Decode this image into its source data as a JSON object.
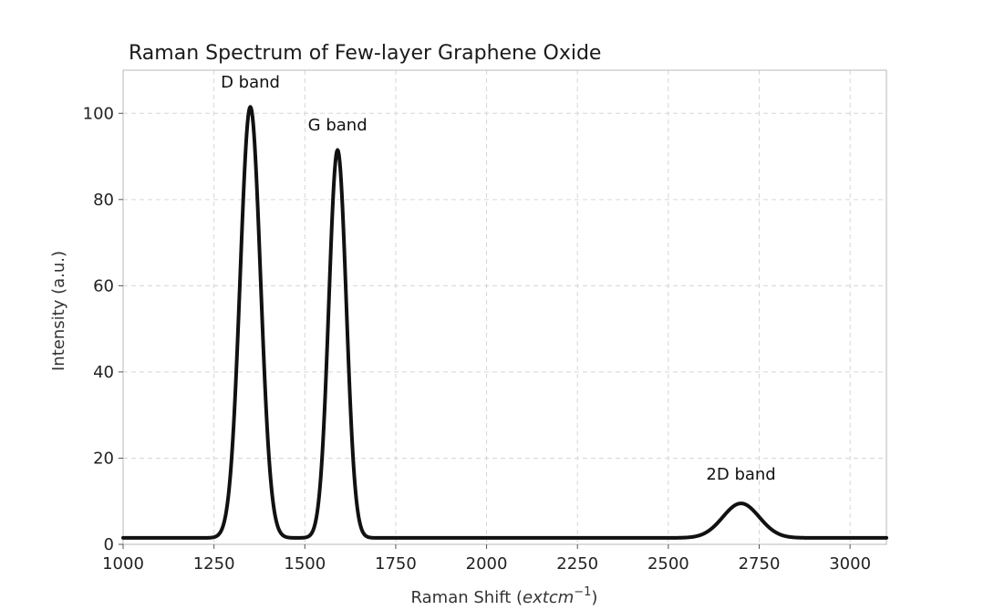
{
  "chart_data": {
    "type": "line",
    "title": "Raman Spectrum of Few-layer Graphene Oxide",
    "xlabel": "Raman Shift (extcm^-1)",
    "xlabel_parts": {
      "prefix": "Raman Shift (",
      "math": "extcm",
      "exponent": "−1",
      "suffix": ")"
    },
    "ylabel": "Intensity (a.u.)",
    "xlim": [
      1000,
      3100
    ],
    "ylim": [
      0,
      110
    ],
    "x_ticks": [
      1000,
      1250,
      1500,
      1750,
      2000,
      2250,
      2500,
      2750,
      3000
    ],
    "y_ticks": [
      0,
      20,
      40,
      60,
      80,
      100
    ],
    "grid": true,
    "legend": "none",
    "baseline": 1.5,
    "peaks": [
      {
        "label": "D band",
        "center": 1350,
        "height": 100,
        "width": 28
      },
      {
        "label": "G band",
        "center": 1590,
        "height": 90,
        "width": 24
      },
      {
        "label": "2D band",
        "center": 2700,
        "height": 8,
        "width": 50
      }
    ],
    "x": [
      1000,
      1100,
      1200,
      1260,
      1290,
      1310,
      1330,
      1350,
      1370,
      1390,
      1410,
      1440,
      1480,
      1530,
      1550,
      1570,
      1590,
      1610,
      1630,
      1650,
      1700,
      2000,
      2500,
      2580,
      2620,
      2660,
      2700,
      2740,
      2780,
      2820,
      2900,
      3100
    ],
    "y": [
      1.5,
      1.5,
      1.5,
      2.0,
      11.9,
      37.2,
      81.0,
      101.5,
      81.0,
      37.2,
      11.9,
      1.7,
      1.5,
      2.0,
      8.5,
      52.9,
      91.5,
      52.9,
      8.5,
      2.0,
      1.5,
      1.5,
      1.5,
      1.8,
      4.0,
      7.6,
      9.5,
      7.6,
      4.0,
      1.8,
      1.5,
      1.5
    ],
    "annotations": [
      {
        "text": "D band",
        "x": 1350,
        "y": 106
      },
      {
        "text": "G band",
        "x": 1590,
        "y": 96
      },
      {
        "text": "2D band",
        "x": 2700,
        "y": 15
      }
    ],
    "line_color": "#111111"
  }
}
